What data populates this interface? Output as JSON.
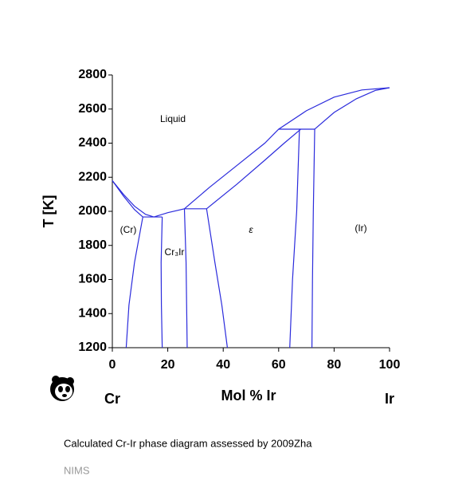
{
  "chart_data": {
    "type": "line",
    "ylabel": "T [K]",
    "xlabel": "Mol % Ir",
    "x_left_label": "Cr",
    "x_right_label": "Ir",
    "xlim": [
      0,
      100
    ],
    "xticks": [
      0,
      20,
      40,
      60,
      80,
      100
    ],
    "ylim": [
      1200,
      2800
    ],
    "yticks": [
      1200,
      1400,
      1600,
      1800,
      2000,
      2200,
      2400,
      2600,
      2800
    ],
    "color": "#2b2bdc",
    "annotations": [
      "Liquid",
      "(Cr)",
      "Cr₃Ir",
      "ε",
      "(Ir)"
    ],
    "series": [
      {
        "x": [
          0,
          4,
          8,
          12,
          15,
          20,
          26,
          35,
          45,
          55,
          60,
          70,
          80,
          90,
          100
        ],
        "values": [
          2180,
          2100,
          2030,
          1982,
          1967,
          1992,
          2015,
          2140,
          2270,
          2400,
          2482,
          2590,
          2670,
          2712,
          2725
        ]
      },
      {
        "x": [
          0,
          4,
          8,
          11
        ],
        "values": [
          2180,
          2090,
          2010,
          1967
        ]
      },
      {
        "x": [
          11,
          18
        ],
        "values": [
          1967,
          1967
        ]
      },
      {
        "x": [
          26,
          34
        ],
        "values": [
          2015,
          2015
        ]
      },
      {
        "x": [
          60,
          73
        ],
        "values": [
          2482,
          2482
        ]
      },
      {
        "x": [
          34,
          45,
          55,
          62,
          68
        ],
        "values": [
          2015,
          2160,
          2300,
          2400,
          2482
        ]
      },
      {
        "x": [
          73,
          80,
          88,
          95,
          100
        ],
        "values": [
          2482,
          2580,
          2660,
          2710,
          2725
        ]
      },
      {
        "x": [
          11,
          8,
          6,
          5
        ],
        "values": [
          1967,
          1700,
          1450,
          1200
        ]
      },
      {
        "x": [
          18,
          17.6,
          17.7,
          18
        ],
        "values": [
          1967,
          1700,
          1450,
          1200
        ]
      },
      {
        "x": [
          26,
          26.6,
          26.8,
          27
        ],
        "values": [
          2015,
          1700,
          1450,
          1200
        ]
      },
      {
        "x": [
          34,
          37,
          39.5,
          41.5
        ],
        "values": [
          2015,
          1700,
          1450,
          1200
        ]
      },
      {
        "x": [
          67.5,
          66.5,
          65,
          64
        ],
        "values": [
          2482,
          2000,
          1600,
          1200
        ]
      },
      {
        "x": [
          73,
          72.5,
          72.2,
          72
        ],
        "values": [
          2482,
          2000,
          1600,
          1200
        ]
      }
    ]
  },
  "caption": "Calculated Cr-Ir phase diagram assessed by 2009Zha",
  "source": "NIMS"
}
